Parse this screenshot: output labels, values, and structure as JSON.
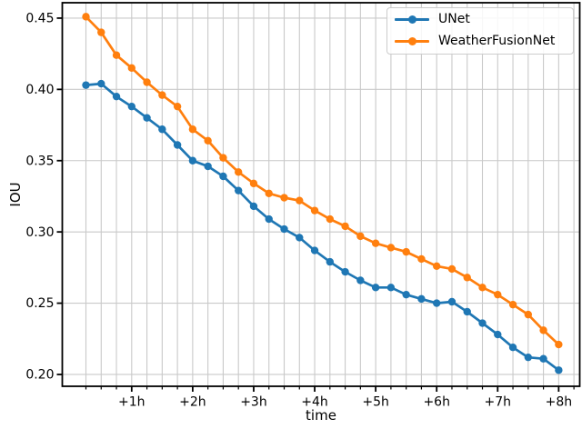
{
  "style": {
    "background": "#ffffff",
    "grid_color": "#c9c9c9",
    "spine_color": "#000000",
    "text_color": "#000000",
    "legend_border": "#cccccc",
    "accent_blue": "#1f77b4",
    "accent_orange": "#ff7f0e"
  },
  "chart_data": {
    "type": "line",
    "title": "",
    "xlabel": "time",
    "ylabel": "IOU",
    "grid": true,
    "marker": "o",
    "legend_position": "upper right",
    "x_hours": [
      0.25,
      0.5,
      0.75,
      1.0,
      1.25,
      1.5,
      1.75,
      2.0,
      2.25,
      2.5,
      2.75,
      3.0,
      3.25,
      3.5,
      3.75,
      4.0,
      4.25,
      4.5,
      4.75,
      5.0,
      5.25,
      5.5,
      5.75,
      6.0,
      6.25,
      6.5,
      6.75,
      7.0,
      7.25,
      7.5,
      7.75,
      8.0
    ],
    "series": [
      {
        "name": "UNet",
        "color": "#1f77b4",
        "values": [
          0.403,
          0.404,
          0.395,
          0.388,
          0.38,
          0.372,
          0.361,
          0.35,
          0.346,
          0.339,
          0.329,
          0.318,
          0.309,
          0.302,
          0.296,
          0.287,
          0.279,
          0.272,
          0.266,
          0.261,
          0.261,
          0.256,
          0.253,
          0.25,
          0.251,
          0.244,
          0.236,
          0.228,
          0.219,
          0.212,
          0.211,
          0.203
        ]
      },
      {
        "name": "WeatherFusionNet",
        "color": "#ff7f0e",
        "values": [
          0.451,
          0.44,
          0.424,
          0.415,
          0.405,
          0.396,
          0.388,
          0.372,
          0.364,
          0.352,
          0.342,
          0.334,
          0.327,
          0.324,
          0.322,
          0.315,
          0.309,
          0.304,
          0.297,
          0.292,
          0.289,
          0.286,
          0.281,
          0.276,
          0.274,
          0.268,
          0.261,
          0.256,
          0.249,
          0.242,
          0.231,
          0.221
        ]
      }
    ],
    "xticks": [
      {
        "hour": 1,
        "label": "+1h"
      },
      {
        "hour": 2,
        "label": "+2h"
      },
      {
        "hour": 3,
        "label": "+3h"
      },
      {
        "hour": 4,
        "label": "+4h"
      },
      {
        "hour": 5,
        "label": "+5h"
      },
      {
        "hour": 6,
        "label": "+6h"
      },
      {
        "hour": 7,
        "label": "+7h"
      },
      {
        "hour": 8,
        "label": "+8h"
      }
    ],
    "yticks": [
      {
        "value": 0.45,
        "label": "0.45"
      },
      {
        "value": 0.4,
        "label": "0.40"
      },
      {
        "value": 0.35,
        "label": "0.35"
      },
      {
        "value": 0.3,
        "label": "0.30"
      },
      {
        "value": 0.25,
        "label": "0.25"
      },
      {
        "value": 0.2,
        "label": "0.20"
      }
    ],
    "minor_tick_step_hours": 0.25,
    "xlim_hours": [
      -0.1376,
      8.345
    ],
    "ylim": [
      0.1917,
      0.4608
    ]
  }
}
